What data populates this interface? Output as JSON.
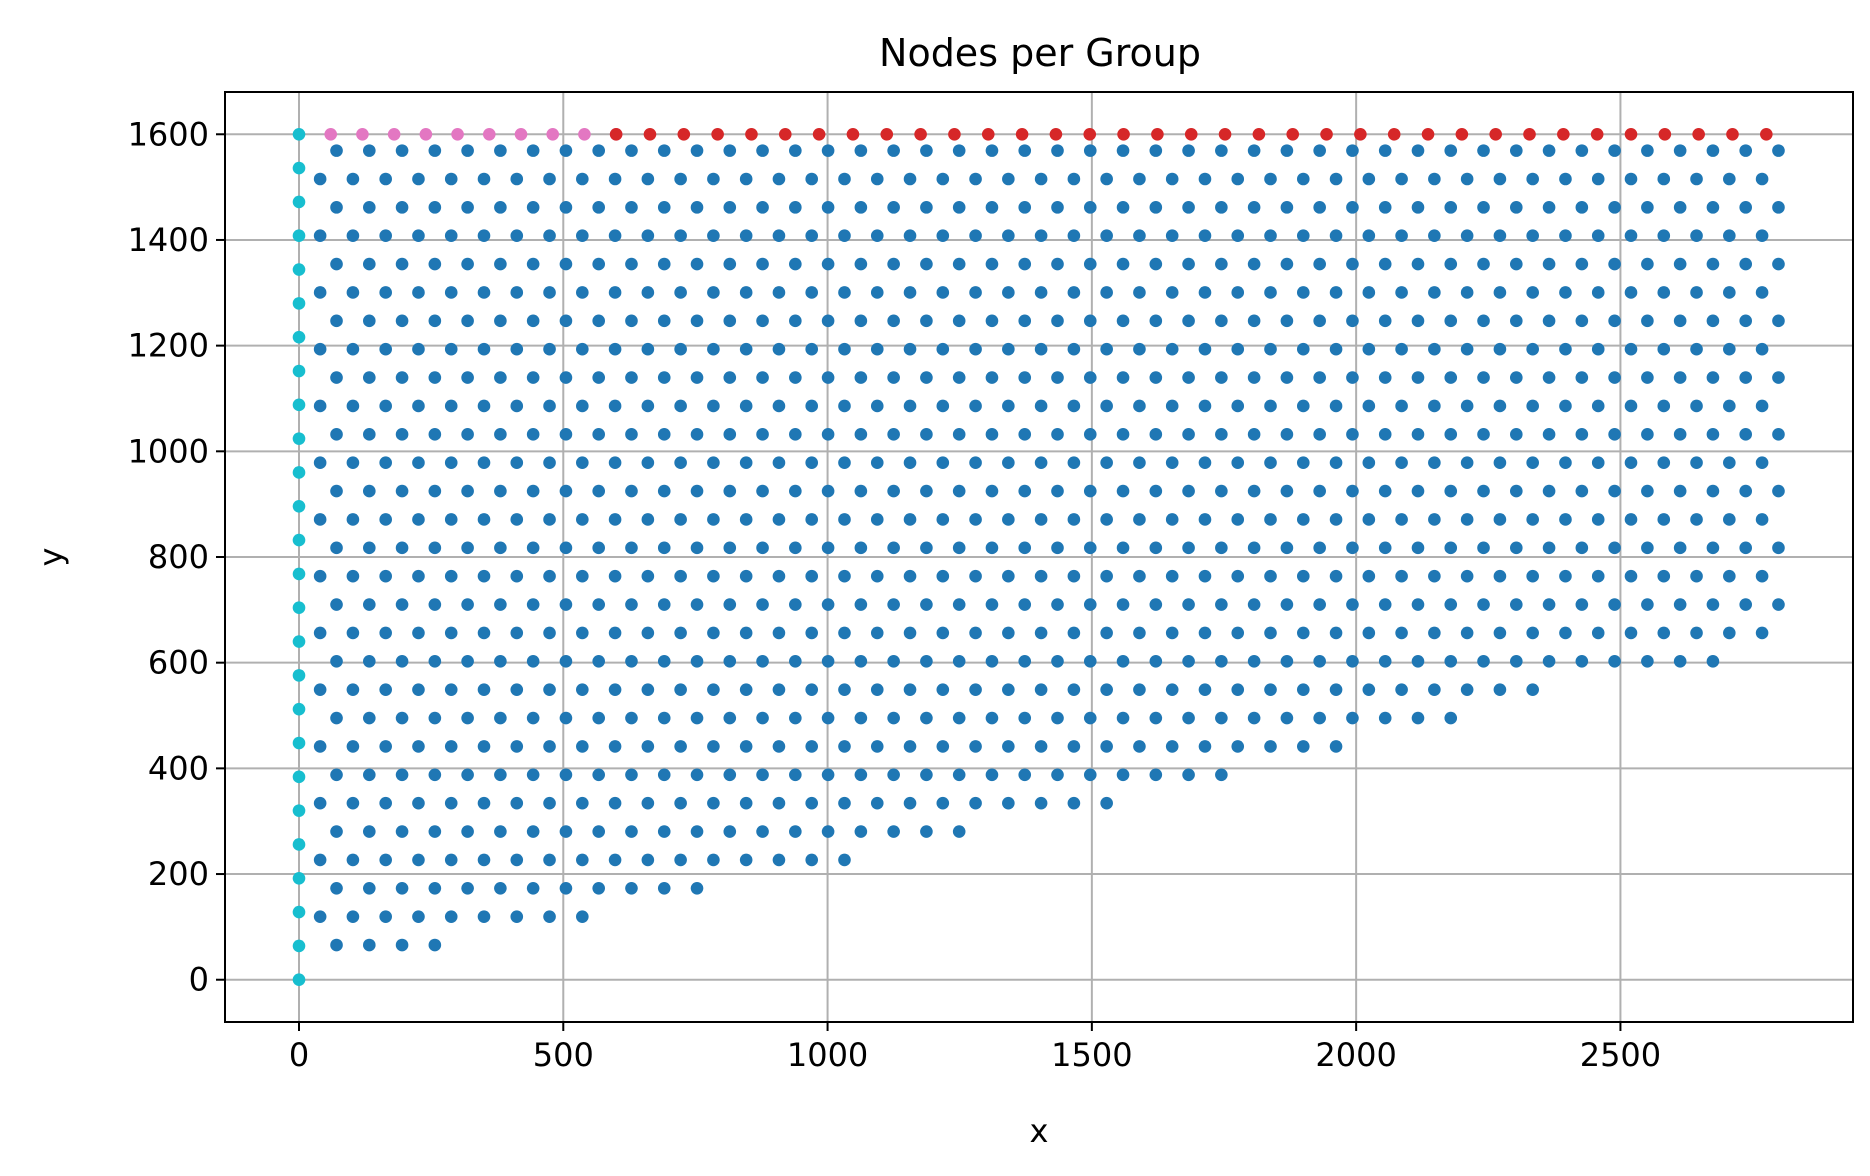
{
  "chart_data": {
    "type": "scatter",
    "title": "Nodes per Group",
    "xlabel": "x",
    "ylabel": "y",
    "xlim": [
      -140,
      2940
    ],
    "ylim": [
      -80,
      1680
    ],
    "xticks": [
      0,
      500,
      1000,
      1500,
      2000,
      2500
    ],
    "yticks": [
      0,
      200,
      400,
      600,
      800,
      1000,
      1200,
      1400,
      1600
    ],
    "grid": true,
    "legend": "none",
    "domain": {
      "x_range": [
        0,
        2800
      ],
      "top_y": 1600,
      "bottom_edge": [
        [
          0,
          0
        ],
        [
          1000,
          210
        ],
        [
          2000,
          430
        ],
        [
          2500,
          590
        ],
        [
          2800,
          600
        ]
      ]
    },
    "series": [
      {
        "color": "#1f77b4",
        "role": "interior",
        "spacing_approx": 62
      },
      {
        "color": "#17becf",
        "role": "left-boundary",
        "x": 0,
        "y_from": 0,
        "y_to": 1600,
        "step": 64
      },
      {
        "color": "#e377c2",
        "role": "top-boundary",
        "y": 1600,
        "x_from": 60,
        "x_to": 600,
        "step": 60
      },
      {
        "color": "#d62728",
        "role": "top-boundary",
        "y": 1600,
        "x_from": 600,
        "x_to": 2800,
        "step": 64
      }
    ]
  }
}
